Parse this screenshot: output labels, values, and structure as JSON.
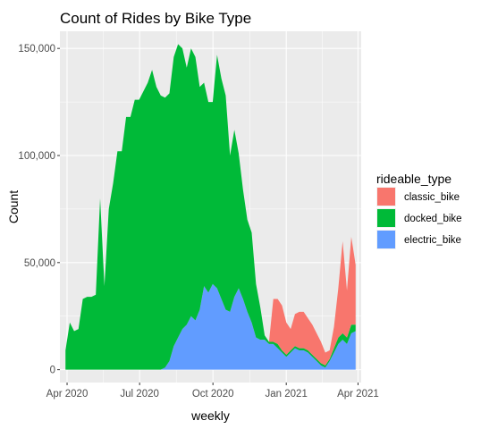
{
  "chart_data": {
    "type": "area",
    "stacked": true,
    "title": "Count of Rides by Bike Type",
    "xlabel": "weekly",
    "ylabel": "Count",
    "x_start": "2020-03-30",
    "x_end": "2021-03-29",
    "xlim": [
      "2020-03-23",
      "2021-04-05"
    ],
    "ylim": [
      -6000,
      158000
    ],
    "x_ticks": [
      {
        "label": "Apr 2020",
        "date": "2020-04-01"
      },
      {
        "label": "Jul 2020",
        "date": "2020-07-01"
      },
      {
        "label": "Oct 2020",
        "date": "2020-10-01"
      },
      {
        "label": "Jan 2021",
        "date": "2021-01-01"
      },
      {
        "label": "Apr 2021",
        "date": "2021-04-01"
      }
    ],
    "y_ticks": [
      {
        "label": "0",
        "value": 0
      },
      {
        "label": "50,000",
        "value": 50000
      },
      {
        "label": "100,000",
        "value": 100000
      },
      {
        "label": "150,000",
        "value": 150000
      }
    ],
    "grid": true,
    "legend": {
      "title": "rideable_type",
      "position": "right",
      "entries": [
        {
          "name": "classic_bike",
          "color": "#F8766D"
        },
        {
          "name": "docked_bike",
          "color": "#00BA38"
        },
        {
          "name": "electric_bike",
          "color": "#619CFF"
        }
      ]
    },
    "series": [
      {
        "name": "electric_bike",
        "color": "#619CFF",
        "values": [
          0,
          0,
          0,
          0,
          0,
          0,
          0,
          0,
          0,
          0,
          0,
          0,
          0,
          0,
          0,
          0,
          0,
          0,
          0,
          0,
          0,
          0,
          0,
          1000,
          4000,
          11000,
          15000,
          19000,
          21000,
          25000,
          23000,
          28000,
          39000,
          36000,
          40000,
          38000,
          33000,
          28000,
          27000,
          34000,
          38000,
          33000,
          27000,
          22000,
          15000,
          14000,
          14000,
          12000,
          12000,
          10000,
          8000,
          6000,
          8000,
          10000,
          9000,
          9000,
          8000,
          6000,
          4000,
          2000,
          1000,
          4000,
          8000,
          12000,
          14000,
          12000,
          17000,
          18000
        ]
      },
      {
        "name": "docked_bike",
        "color": "#00BA38",
        "values": [
          9000,
          22000,
          18000,
          19000,
          33000,
          34000,
          34000,
          35000,
          80000,
          39000,
          75000,
          87000,
          102000,
          102000,
          118000,
          118000,
          126000,
          126000,
          130000,
          134000,
          140000,
          132000,
          128000,
          126000,
          125000,
          135000,
          137000,
          131000,
          120000,
          125000,
          123000,
          104000,
          95000,
          89000,
          85000,
          109000,
          103000,
          100000,
          73000,
          78000,
          63000,
          51000,
          43000,
          42000,
          25000,
          15000,
          2000,
          1000,
          1000,
          2000,
          1000,
          1000,
          1000,
          1000,
          1000,
          1000,
          1000,
          1000,
          1000,
          1000,
          1000,
          1000,
          2000,
          3000,
          3000,
          3000,
          4000,
          3000
        ]
      },
      {
        "name": "classic_bike",
        "color": "#F8766D",
        "values": [
          0,
          0,
          0,
          0,
          0,
          0,
          0,
          0,
          0,
          0,
          0,
          0,
          0,
          0,
          0,
          0,
          0,
          0,
          0,
          0,
          0,
          0,
          0,
          0,
          0,
          0,
          0,
          0,
          0,
          0,
          0,
          0,
          0,
          0,
          0,
          0,
          0,
          0,
          0,
          0,
          0,
          0,
          0,
          0,
          0,
          0,
          0,
          0,
          20000,
          21000,
          21000,
          15000,
          10000,
          15000,
          17000,
          17000,
          15000,
          14000,
          12000,
          10000,
          6000,
          4000,
          10000,
          23000,
          43000,
          22000,
          41000,
          28000
        ]
      }
    ]
  }
}
